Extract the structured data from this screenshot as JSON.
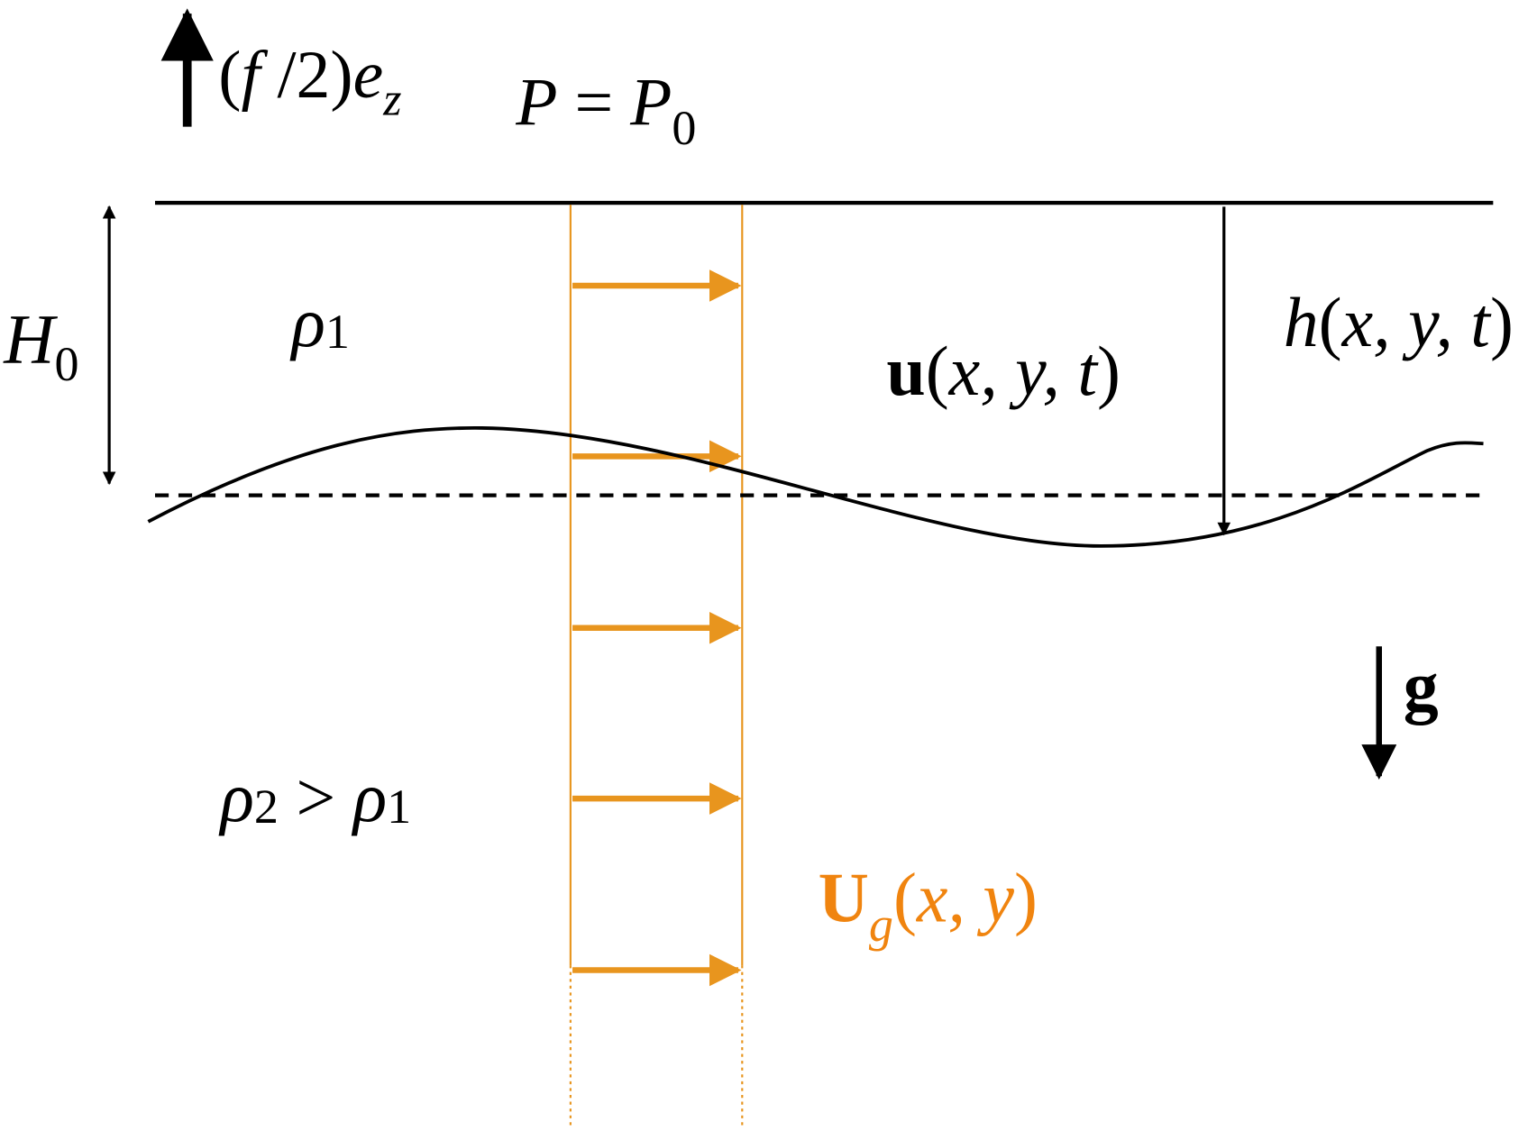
{
  "colors": {
    "ink": "#000000",
    "flow": "#E8951E",
    "flow_label": "#F0840F"
  },
  "labels": {
    "rotation": {
      "open": "(",
      "f": "f",
      "slash": " /2)",
      "e": "e",
      "sub": "z"
    },
    "pressure": {
      "lhs": "P",
      "eq": " = ",
      "rhs": "P",
      "sub": "0"
    },
    "depth": {
      "main": "H",
      "sub": "0"
    },
    "rho1": {
      "main": "ρ",
      "sub": "1"
    },
    "rho2": {
      "main": "ρ",
      "sub": "2",
      "gt": " > ",
      "main2": "ρ",
      "sub2": "1"
    },
    "velocity": {
      "bold": "u",
      "rest_open": "(",
      "args": "x, y, t",
      "rest_close": ")"
    },
    "thickness": {
      "h": "h",
      "open": "(",
      "args": "x, y, t",
      "close": ")"
    },
    "gravity": "g",
    "geostrophic": {
      "bold": "U",
      "sub": "g",
      "open": "(",
      "args": "x, y",
      "close": ")"
    }
  }
}
